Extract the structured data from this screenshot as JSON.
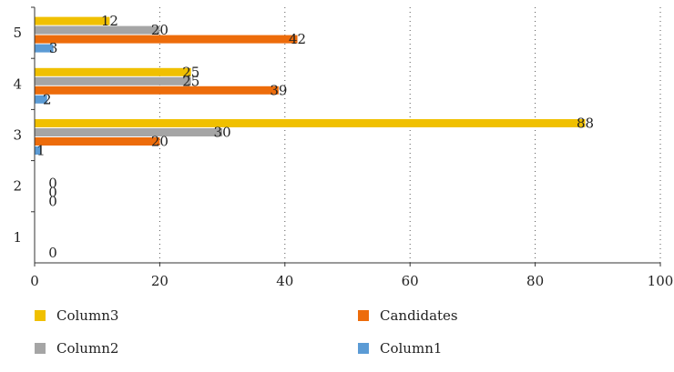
{
  "chart_data": {
    "type": "bar",
    "orientation": "horizontal",
    "categories": [
      "1",
      "2",
      "3",
      "4",
      "5"
    ],
    "series": [
      {
        "name": "Column1",
        "color": "#5b9bd5",
        "values": [
          0,
          0,
          1,
          2,
          3
        ]
      },
      {
        "name": "Candidates",
        "color": "#ed6c0b",
        "values": [
          null,
          0,
          20,
          39,
          42
        ]
      },
      {
        "name": "Column2",
        "color": "#a5a5a5",
        "values": [
          null,
          0,
          30,
          25,
          20
        ]
      },
      {
        "name": "Column3",
        "color": "#f0c000",
        "values": [
          null,
          null,
          88,
          25,
          12
        ]
      }
    ],
    "xlim": [
      0,
      100
    ],
    "xticks": [
      "0",
      "20",
      "40",
      "60",
      "80",
      "100"
    ],
    "grid": "vertical dotted",
    "legend_placement": "bottom",
    "title": "",
    "xlabel": "",
    "ylabel": ""
  }
}
